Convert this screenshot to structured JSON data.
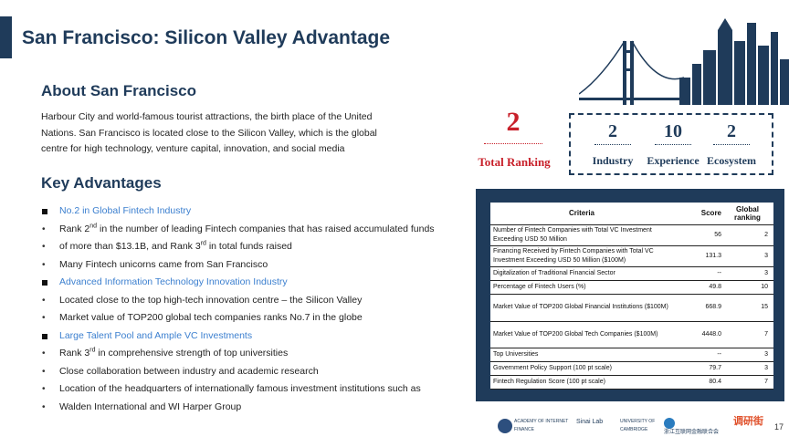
{
  "slide": {
    "title": "San Francisco: Silicon Valley Advantage",
    "page_number": "17"
  },
  "about": {
    "heading": "About San Francisco",
    "lines": [
      "Harbour City and world-famous tourist attractions, the birth place of the United",
      "Nations. San Francisco is located close to the Silicon Valley, which is the global",
      "centre for high technology, venture capital, innovation, and social media"
    ]
  },
  "advantages": {
    "heading": "Key Advantages",
    "sections": [
      {
        "title": "No.2 in Global Fintech Industry",
        "items": [
          {
            "pre": "Rank 2",
            "sup": "nd",
            "post": " in the number of leading Fintech companies that has raised accumulated funds"
          },
          {
            "pre": "of more than $13.1B, and Rank 3",
            "sup": "rd",
            "post": " in total funds raised"
          },
          {
            "pre": "Many Fintech unicorns came from San Francisco",
            "sup": "",
            "post": ""
          }
        ]
      },
      {
        "title": "Advanced Information Technology Innovation Industry",
        "items": [
          {
            "pre": "Located close to the top high-tech innovation centre – the Silicon Valley",
            "sup": "",
            "post": ""
          },
          {
            "pre": "Market value of TOP200 global tech companies ranks No.7 in the globe",
            "sup": "",
            "post": ""
          }
        ]
      },
      {
        "title": "Large Talent Pool and Ample VC Investments",
        "items": [
          {
            "pre": "Rank 3",
            "sup": "rd",
            "post": " in comprehensive strength of top universities"
          },
          {
            "pre": "Close collaboration between industry and academic research",
            "sup": "",
            "post": ""
          },
          {
            "pre": "Location of the headquarters of internationally famous investment institutions such as",
            "sup": "",
            "post": ""
          },
          {
            "pre": "Walden International and WI Harper Group",
            "sup": "",
            "post": ""
          }
        ]
      }
    ]
  },
  "ranking": {
    "total_value": "2",
    "total_label": "Total Ranking",
    "items": [
      {
        "value": "2",
        "label": "Industry"
      },
      {
        "value": "10",
        "label": "Experience"
      },
      {
        "value": "2",
        "label": "Ecosystem"
      }
    ]
  },
  "table": {
    "headers": {
      "criteria": "Criteria",
      "score": "Score",
      "rank": "Global ranking"
    },
    "rows": [
      {
        "criteria": "Number of Fintech Companies with Total VC Investment Exceeding USD 50 Million",
        "score": "56",
        "rank": "2"
      },
      {
        "criteria": "Financing Received by Fintech Companies with Total VC Investment Exceeding USD 50 Million ($100M)",
        "score": "131.3",
        "rank": "3"
      },
      {
        "criteria": "Digitalization of Traditional Financial Sector",
        "score": "--",
        "rank": "3"
      },
      {
        "criteria": "Percentage of Fintech Users (%)",
        "score": "49.8",
        "rank": "10"
      },
      {
        "criteria": "Market Value of TOP200 Global Financial Institutions ($100M)",
        "score": "668.9",
        "rank": "15"
      },
      {
        "criteria": "Market Value of TOP200 Global Tech Companies ($100M)",
        "score": "4448.0",
        "rank": "7"
      },
      {
        "criteria": "Top Universities",
        "score": "--",
        "rank": "3"
      },
      {
        "criteria": "Government Policy Support (100 pt scale)",
        "score": "79.7",
        "rank": "3"
      },
      {
        "criteria": "Fintech Regulation Score (100 pt scale)",
        "score": "80.4",
        "rank": "7"
      }
    ]
  },
  "footer": {
    "logos": [
      {
        "icon": "zju-aif-logo",
        "text": "ACADEMY OF INTERNET FINANCE"
      },
      {
        "icon": "sinai-lab-logo",
        "text": "Sinai Lab"
      },
      {
        "icon": "cambridge-logo",
        "text": "UNIVERSITY OF CAMBRIDGE"
      },
      {
        "icon": "zhejiang-internet-finance-logo",
        "text": "浙江互联网金融联合会"
      },
      {
        "icon": "diaoyanjie-logo",
        "text": "调研街"
      }
    ]
  },
  "colors": {
    "navy": "#1f3b5a",
    "accent_red": "#c8202a",
    "link_blue": "#3b7fcf"
  }
}
